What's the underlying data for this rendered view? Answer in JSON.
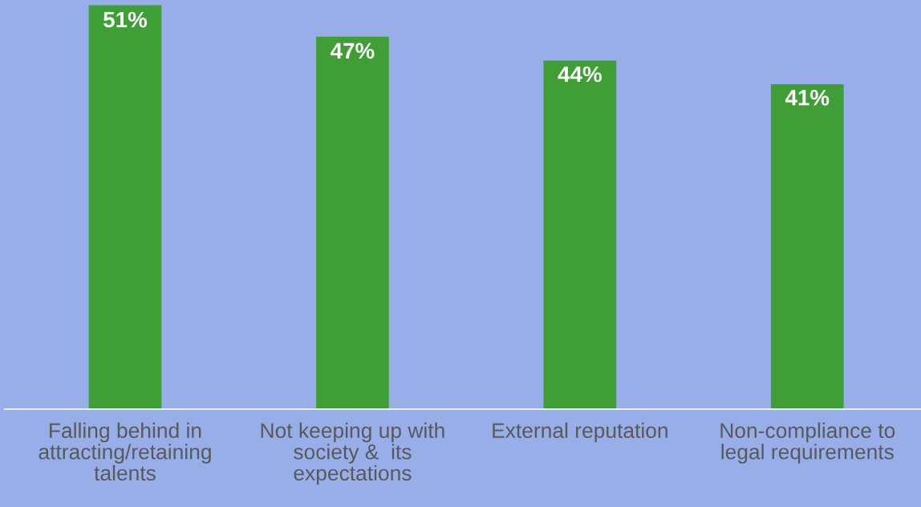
{
  "chart_data": {
    "type": "bar",
    "categories": [
      "Falling behind in\nattracting/retaining\ntalents",
      "Not keeping up with\nsociety &  its\nexpectations",
      "External reputation",
      "Non-compliance to\nlegal requirements"
    ],
    "values": [
      51,
      47,
      44,
      41
    ],
    "color": "#3f9e35",
    "value_labels": [
      "51%",
      "47%",
      "44%",
      "41%"
    ],
    "grid": false,
    "legend": false
  }
}
